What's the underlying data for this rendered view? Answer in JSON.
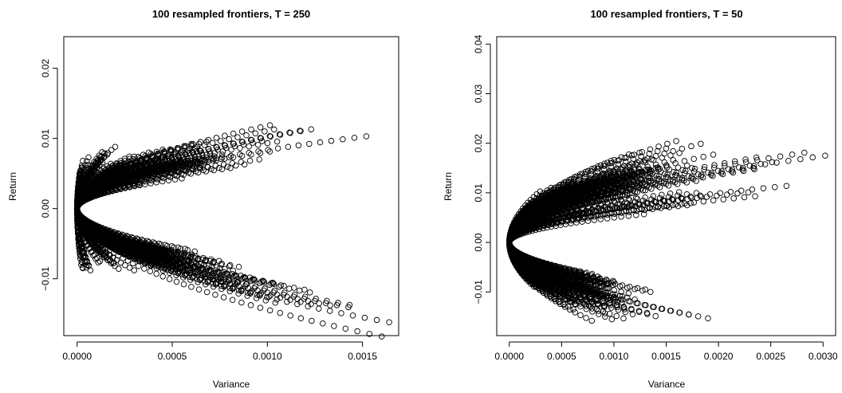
{
  "chart_data": [
    {
      "type": "scatter",
      "title": "100 resampled frontiers, T = 250",
      "xlabel": "Variance",
      "ylabel": "Return",
      "xlim": [
        -7e-05,
        0.00169
      ],
      "ylim": [
        -0.0181,
        0.0245
      ],
      "xticks": [
        0,
        0.0005,
        0.001,
        0.0015
      ],
      "xtick_labels": [
        "0.0000",
        "0.0005",
        "0.0010",
        "0.0015"
      ],
      "yticks": [
        -0.01,
        0,
        0.01,
        0.02
      ],
      "ytick_labels": [
        "−0.01",
        "0.00",
        "0.01",
        "0.02"
      ],
      "marker": "open-circle",
      "n_frontiers": 100,
      "series": [
        {
          "upper_end": [
            3e-05,
            0.0068
          ],
          "lower_end": [
            3e-05,
            -0.0085
          ]
        },
        {
          "upper_end": [
            6e-05,
            0.0073
          ],
          "lower_end": [
            7e-05,
            -0.0088
          ]
        },
        {
          "upper_end": [
            0.00012,
            0.0069
          ],
          "lower_end": [
            0.00012,
            -0.0075
          ]
        },
        {
          "upper_end": [
            0.0002,
            0.0088
          ],
          "lower_end": [
            0.0003,
            -0.0088
          ]
        },
        {
          "upper_end": [
            0.0003,
            0.0074
          ],
          "lower_end": [
            0.0004,
            -0.0077
          ]
        },
        {
          "upper_end": [
            0.00035,
            0.0065
          ],
          "lower_end": [
            0.00045,
            -0.0065
          ]
        },
        {
          "upper_end": [
            0.00045,
            0.0084
          ],
          "lower_end": [
            0.00055,
            -0.0083
          ]
        },
        {
          "upper_end": [
            0.00055,
            0.0065
          ],
          "lower_end": [
            0.0006,
            -0.0068
          ]
        },
        {
          "upper_end": [
            0.0006,
            0.0092
          ],
          "lower_end": [
            0.0007,
            -0.0075
          ]
        },
        {
          "upper_end": [
            0.00068,
            0.0095
          ],
          "lower_end": [
            0.00075,
            -0.0085
          ]
        },
        {
          "upper_end": [
            0.0007,
            0.0078
          ],
          "lower_end": [
            0.0008,
            -0.0082
          ]
        },
        {
          "upper_end": [
            0.0008,
            0.0073
          ],
          "lower_end": [
            0.00085,
            -0.0083
          ]
        },
        {
          "upper_end": [
            0.00088,
            0.0063
          ],
          "lower_end": [
            0.00103,
            -0.0106
          ]
        },
        {
          "upper_end": [
            0.00117,
            0.0111
          ],
          "lower_end": [
            0.00133,
            -0.0138
          ]
        },
        {
          "upper_end": [
            0.00123,
            0.0113
          ],
          "lower_end": [
            0.00164,
            -0.0162
          ]
        },
        {
          "upper_end": [
            0.00152,
            0.0103
          ],
          "lower_end": [
            0.0006,
            -0.0078
          ]
        }
      ]
    },
    {
      "type": "scatter",
      "title": "100 resampled frontiers, T = 50",
      "xlabel": "Variance",
      "ylabel": "Return",
      "xlim": [
        -0.00012,
        0.00312
      ],
      "ylim": [
        -0.0188,
        0.0415
      ],
      "xticks": [
        0,
        0.0005,
        0.001,
        0.0015,
        0.002,
        0.0025,
        0.003
      ],
      "xtick_labels": [
        "0.0000",
        "0.0005",
        "0.0010",
        "0.0015",
        "0.0020",
        "0.0025",
        "0.0030"
      ],
      "yticks": [
        -0.01,
        0,
        0.01,
        0.02,
        0.03,
        0.04
      ],
      "ytick_labels": [
        "−0.01",
        "0.00",
        "0.01",
        "0.02",
        "0.03",
        "0.04"
      ],
      "marker": "open-circle",
      "n_frontiers": 100,
      "series": [
        {
          "upper_end": [
            0.0004,
            0.011
          ],
          "lower_end": [
            0.0003,
            -0.009
          ]
        },
        {
          "upper_end": [
            0.0006,
            0.012
          ],
          "lower_end": [
            0.0006,
            -0.012
          ]
        },
        {
          "upper_end": [
            0.0008,
            0.01
          ],
          "lower_end": [
            0.0007,
            -0.0075
          ]
        },
        {
          "upper_end": [
            0.001,
            0.014
          ],
          "lower_end": [
            0.0008,
            -0.0125
          ]
        },
        {
          "upper_end": [
            0.0012,
            0.0135
          ],
          "lower_end": [
            0.0009,
            -0.0105
          ]
        },
        {
          "upper_end": [
            0.0014,
            0.015
          ],
          "lower_end": [
            0.00098,
            -0.0155
          ]
        },
        {
          "upper_end": [
            0.0015,
            0.0155
          ],
          "lower_end": [
            0.001,
            -0.011
          ]
        },
        {
          "upper_end": [
            0.0016,
            0.0135
          ],
          "lower_end": [
            0.0011,
            -0.0135
          ]
        },
        {
          "upper_end": [
            0.0017,
            0.0155
          ],
          "lower_end": [
            0.00118,
            -0.0145
          ]
        },
        {
          "upper_end": [
            0.00183,
            0.0199
          ],
          "lower_end": [
            0.0013,
            -0.0095
          ]
        },
        {
          "upper_end": [
            0.00195,
            0.0177
          ],
          "lower_end": [
            0.00135,
            -0.01
          ]
        },
        {
          "upper_end": [
            0.0013,
            0.0105
          ],
          "lower_end": [
            0.0019,
            -0.0153
          ]
        },
        {
          "upper_end": [
            0.00235,
            0.0093
          ],
          "lower_end": [
            0.0007,
            -0.0068
          ]
        },
        {
          "upper_end": [
            0.00265,
            0.0114
          ],
          "lower_end": [
            0.0009,
            -0.0085
          ]
        },
        {
          "upper_end": [
            0.00302,
            0.0175
          ],
          "lower_end": [
            0.0012,
            -0.0115
          ]
        },
        {
          "upper_end": [
            0.0017,
            0.0075
          ],
          "lower_end": [
            0.001,
            -0.008
          ]
        }
      ]
    }
  ]
}
